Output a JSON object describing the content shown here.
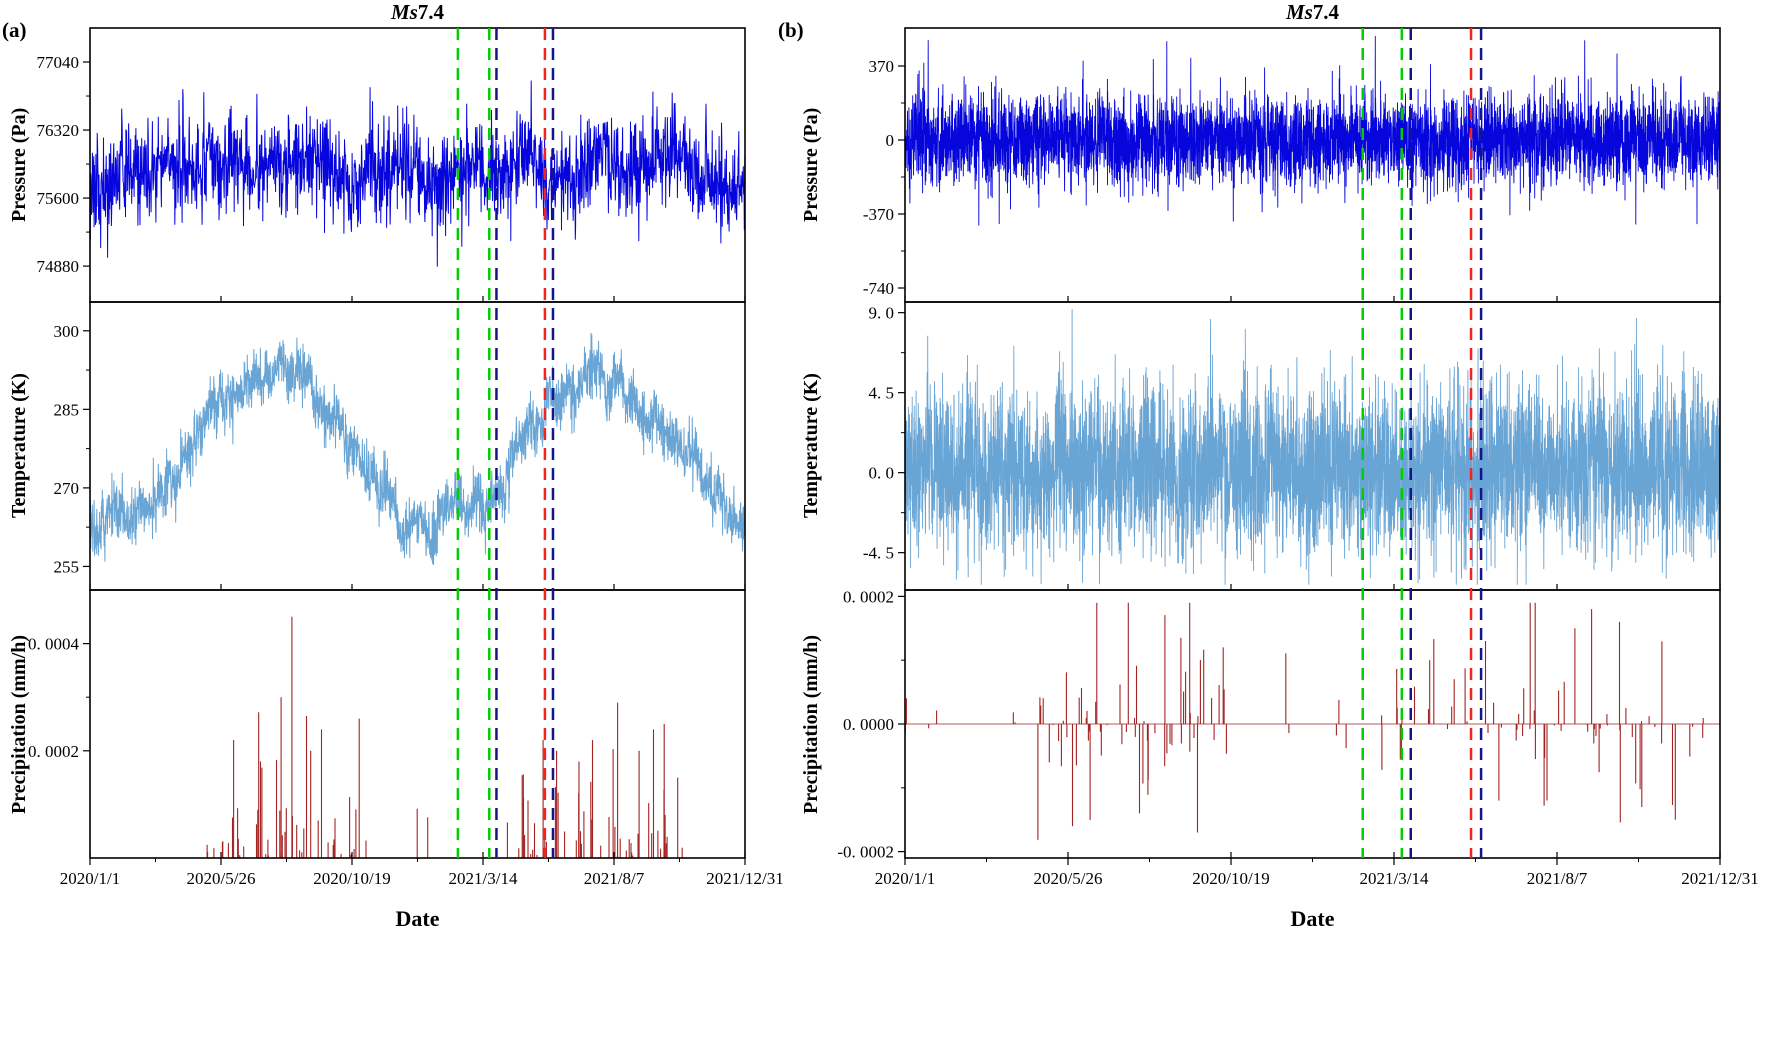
{
  "chart_meta": {
    "panel_a_label": "(a)",
    "panel_b_label": "(b)",
    "title_italic": "Ms",
    "title_rest": "7.4"
  },
  "colors": {
    "pressure": "#0505DC",
    "temperature": "#68A4D4",
    "precipitation": "#A32222",
    "event_green": "#00CE00",
    "event_navy": "#14148C",
    "event_red": "#F02424",
    "axis": "#000000",
    "background": "#FFFFFF"
  },
  "chart_data": [
    {
      "id": "a",
      "type": "line",
      "title": "Ms7.4",
      "x_axis": {
        "label": "Date",
        "total_days": 730,
        "tick_days": [
          0,
          146,
          292,
          438,
          584,
          730
        ],
        "tick_labels": [
          "2020/1/1",
          "2020/5/26",
          "2020/10/19",
          "2021/3/14",
          "2021/8/7",
          "2021/12/31"
        ],
        "minor_tick_days": [
          73,
          219,
          365,
          511,
          657
        ]
      },
      "event_lines": [
        {
          "day": 410,
          "color_key": "event_green"
        },
        {
          "day": 445,
          "color_key": "event_green"
        },
        {
          "day": 453,
          "color_key": "event_navy"
        },
        {
          "day": 507,
          "color_key": "event_red"
        },
        {
          "day": 516,
          "color_key": "event_navy"
        }
      ],
      "panels": [
        {
          "name": "pressure",
          "ylabel": "Pressure (Pa)",
          "color_key": "pressure",
          "y_range": [
            74500,
            77400
          ],
          "y_ticks": [
            {
              "v": 77040,
              "label": "77040"
            },
            {
              "v": 76320,
              "label": "76320"
            },
            {
              "v": 75600,
              "label": "75600"
            },
            {
              "v": 74880,
              "label": "74880"
            }
          ],
          "description": "Raw surface air pressure: noisy series fluctuating roughly between 74880 and 77040 Pa with multi-day swings, higher in mid-2020 and late 2021, lower in early 2021.",
          "gen": {
            "kind": "line",
            "seed": 11,
            "n": 1900,
            "base": 75880,
            "seas_amp": 140,
            "seas_phase": 110,
            "k": 0.02,
            "wstd": 22,
            "jitter": 255,
            "clamp": [
              74840,
              77070
            ],
            "lw": 1
          }
        },
        {
          "name": "temperature",
          "ylabel": "Temperature (K)",
          "color_key": "temperature",
          "y_range": [
            250.5,
            305.5
          ],
          "y_ticks": [
            {
              "v": 300,
              "label": "300"
            },
            {
              "v": 285,
              "label": "285"
            },
            {
              "v": 270,
              "label": "270"
            },
            {
              "v": 255,
              "label": "255"
            }
          ],
          "description": "Raw air temperature with annual cycle: about 263 K in Jan 2020, peak near 297 K mid-2020, trough near 260 K early 2021, peak near 298 K mid-2021, falling to about 266 K by end of 2021; short-period band about +/-4 K.",
          "gen": {
            "kind": "line",
            "seed": 22,
            "n": 2600,
            "base": 277,
            "seas_amp": 14.5,
            "seas_phase": 110,
            "k": 0.03,
            "wstd": 0.45,
            "jitter": 2.6,
            "clamp": [
              253,
              301.5
            ],
            "lw": 1
          }
        },
        {
          "name": "precipitation",
          "ylabel": "Precipitation (mm/h)",
          "color_key": "precipitation",
          "y_range": [
            0,
            0.0005
          ],
          "y_ticks": [
            {
              "v": 0.0004,
              "label": "0. 0004"
            },
            {
              "v": 0.0002,
              "label": "0. 0002"
            }
          ],
          "description": "Rainfall spikes concentrated in the May-October wet seasons of 2020 and 2021; maximum about 0.00045 mm/h in late August 2020, second-season maxima about 0.0003 mm/h.",
          "gen": {
            "kind": "spikes",
            "seed": 33,
            "n": 2920,
            "sign": "positive",
            "windows": [
              [
                118,
                300
              ],
              [
                465,
                665
              ]
            ],
            "p_wet": 0.05,
            "p_dry": 0.004,
            "mag_mean": 6e-05,
            "mag_max": 0.00042,
            "forced": [
              [
                160,
                0.00022
              ],
              [
                190,
                0.00018
              ],
              [
                213,
                0.0003
              ],
              [
                225,
                0.00045
              ],
              [
                246,
                0.0002
              ],
              [
                258,
                0.00024
              ],
              [
                300,
                0.00026
              ],
              [
                505,
                0.00022
              ],
              [
                520,
                0.0002
              ],
              [
                545,
                0.00018
              ],
              [
                560,
                0.00022
              ],
              [
                588,
                0.00029
              ],
              [
                612,
                0.0002
              ],
              [
                628,
                0.00024
              ],
              [
                640,
                0.00025
              ],
              [
                655,
                0.00015
              ]
            ]
          }
        }
      ]
    },
    {
      "id": "b",
      "type": "line",
      "title": "Ms7.4",
      "x_axis": {
        "label": "Date",
        "total_days": 730,
        "tick_days": [
          0,
          146,
          292,
          438,
          584,
          730
        ],
        "tick_labels": [
          "2020/1/1",
          "2020/5/26",
          "2020/10/19",
          "2021/3/14",
          "2021/8/7",
          "2021/12/31"
        ],
        "minor_tick_days": [
          73,
          219,
          365,
          511,
          657
        ]
      },
      "event_lines": [
        {
          "day": 410,
          "color_key": "event_green"
        },
        {
          "day": 445,
          "color_key": "event_green"
        },
        {
          "day": 453,
          "color_key": "event_navy"
        },
        {
          "day": 507,
          "color_key": "event_red"
        },
        {
          "day": 516,
          "color_key": "event_navy"
        }
      ],
      "panels": [
        {
          "name": "pressure_residual",
          "ylabel": "Pressure (Pa)",
          "color_key": "pressure",
          "y_range": [
            -810,
            560
          ],
          "y_ticks": [
            {
              "v": 370,
              "label": "370"
            },
            {
              "v": 0,
              "label": "0"
            },
            {
              "v": -370,
              "label": "-370"
            },
            {
              "v": -740,
              "label": "-740"
            }
          ],
          "description": "Detrended pressure residuals: dense noise band of roughly +/-250 Pa centred on zero with occasional excursions beyond +/-370 Pa.",
          "gen": {
            "kind": "line",
            "seed": 44,
            "n": 5200,
            "base": 0,
            "seas_amp": 0,
            "seas_phase": 0,
            "k": 0.05,
            "wstd": 6,
            "jitter": 112,
            "clamp": [
              -770,
              520
            ],
            "spike_p": 0.004,
            "spike_mag": 230,
            "lw": 0.9
          }
        },
        {
          "name": "temperature_residual",
          "ylabel": "Temperature (K)",
          "color_key": "temperature",
          "y_range": [
            -6.6,
            9.6
          ],
          "y_ticks": [
            {
              "v": 9,
              "label": "9. 0"
            },
            {
              "v": 4.5,
              "label": "4. 5"
            },
            {
              "v": 0,
              "label": "0. 0"
            },
            {
              "v": -4.5,
              "label": "-4. 5"
            }
          ],
          "description": "Detrended temperature residuals: dense noise band of roughly +/-4.5 K around zero with occasional positive excursions toward +8 K.",
          "gen": {
            "kind": "line",
            "seed": 55,
            "n": 5200,
            "base": 0.2,
            "seas_amp": 0,
            "seas_phase": 0,
            "k": 0.05,
            "wstd": 0.14,
            "jitter": 2.25,
            "clamp": [
              -6.3,
              9.2
            ],
            "spike_p": 0.005,
            "spike_mag": 3.2,
            "lw": 0.9
          }
        },
        {
          "name": "precipitation_residual",
          "ylabel": "Precipitation (mm/h)",
          "color_key": "precipitation",
          "y_range": [
            -0.00021,
            0.00021
          ],
          "y_ticks": [
            {
              "v": 0.0002,
              "label": "0. 0002"
            },
            {
              "v": 0,
              "label": "0. 0000"
            },
            {
              "v": -0.0002,
              "label": "-0. 0002"
            }
          ],
          "description": "Detrended precipitation residuals: positive and negative spikes up to about +/-0.0002 mm/h, clustered in mid-2020 and from spring 2021 to late 2021, near-zero elsewhere.",
          "gen": {
            "kind": "spikes",
            "seed": 66,
            "n": 2920,
            "sign": "both",
            "windows": [
              [
                118,
                300
              ],
              [
                440,
                715
              ]
            ],
            "p_wet": 0.065,
            "p_dry": 0.007,
            "mag_mean": 5e-05,
            "mag_max": 0.00019,
            "baseline_line": true,
            "forced": [
              [
                150,
                -0.00016
              ],
              [
                200,
                0.00019
              ],
              [
                210,
                -0.00014
              ],
              [
                255,
                0.00019
              ],
              [
                262,
                -0.00017
              ],
              [
                285,
                0.00012
              ],
              [
                470,
                0.0001
              ],
              [
                520,
                0.00013
              ],
              [
                560,
                0.00019
              ],
              [
                575,
                -0.00012
              ],
              [
                600,
                0.00015
              ],
              [
                615,
                0.00018
              ],
              [
                640,
                0.00016
              ],
              [
                660,
                -0.00013
              ],
              [
                690,
                -0.00015
              ]
            ]
          }
        }
      ]
    }
  ]
}
